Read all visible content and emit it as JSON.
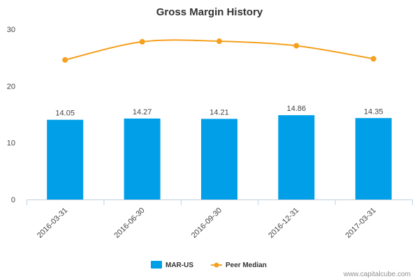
{
  "chart_data": {
    "type": "bar",
    "title": "Gross Margin History",
    "categories": [
      "2016-03-31",
      "2016-06-30",
      "2016-09-30",
      "2016-12-31",
      "2017-03-31"
    ],
    "series": [
      {
        "name": "MAR-US",
        "kind": "bar",
        "color": "#009FE8",
        "values": [
          14.05,
          14.27,
          14.21,
          14.86,
          14.35
        ],
        "labels": [
          "14.05",
          "14.27",
          "14.21",
          "14.86",
          "14.35"
        ]
      },
      {
        "name": "Peer Median",
        "kind": "line",
        "color": "#F5A01E",
        "values": [
          24.6,
          27.8,
          27.9,
          27.1,
          24.8
        ]
      }
    ],
    "ylim": [
      0,
      30
    ],
    "yticks": [
      "0",
      "10",
      "20",
      "30"
    ],
    "xlabel": "",
    "ylabel": "",
    "grid": false,
    "legend_position": "bottom-center"
  },
  "footer": {
    "source_text": "www.capitalcube.com"
  }
}
